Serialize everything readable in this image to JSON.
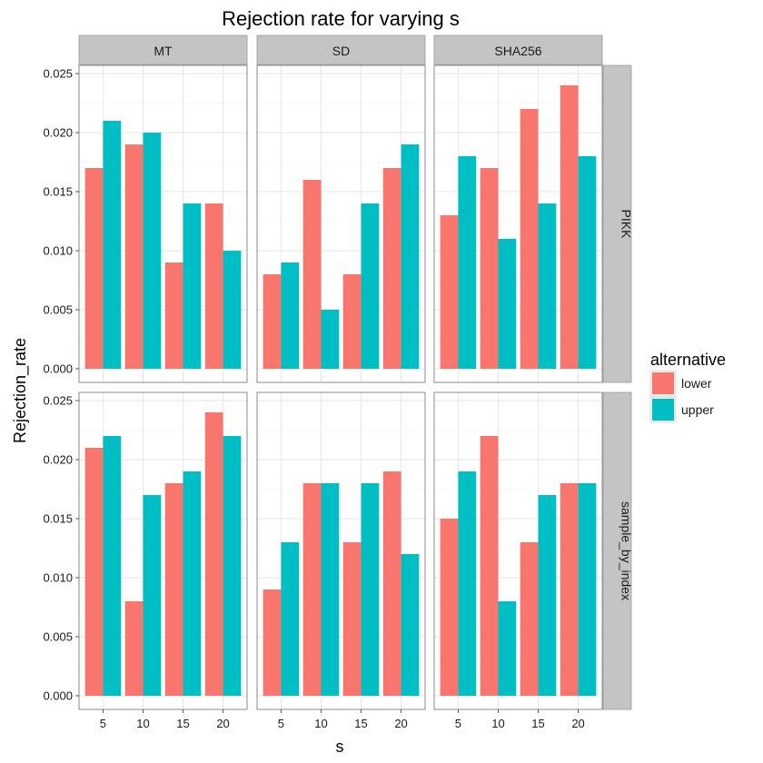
{
  "chart_data": {
    "type": "bar",
    "title": "Rejection rate for varying s",
    "xlabel": "s",
    "ylabel": "Rejection_rate",
    "categories": [
      "5",
      "10",
      "15",
      "20"
    ],
    "ylim": [
      0,
      0.025
    ],
    "yticks": [
      "0.000",
      "0.005",
      "0.010",
      "0.015",
      "0.020",
      "0.025"
    ],
    "grid": true,
    "col_facets": [
      "MT",
      "SD",
      "SHA256"
    ],
    "row_facets": [
      "PIKK",
      "sample_by_index"
    ],
    "legend": {
      "title": "alternative",
      "placement": "right",
      "entries": [
        {
          "name": "lower",
          "color": "#f8766d"
        },
        {
          "name": "upper",
          "color": "#00bfc4"
        }
      ]
    },
    "panels": [
      {
        "row": "PIKK",
        "col": "MT",
        "series": [
          {
            "name": "lower",
            "values": [
              0.017,
              0.019,
              0.009,
              0.014
            ]
          },
          {
            "name": "upper",
            "values": [
              0.021,
              0.02,
              0.014,
              0.01
            ]
          }
        ]
      },
      {
        "row": "PIKK",
        "col": "SD",
        "series": [
          {
            "name": "lower",
            "values": [
              0.008,
              0.016,
              0.008,
              0.017
            ]
          },
          {
            "name": "upper",
            "values": [
              0.009,
              0.005,
              0.014,
              0.019
            ]
          }
        ]
      },
      {
        "row": "PIKK",
        "col": "SHA256",
        "series": [
          {
            "name": "lower",
            "values": [
              0.013,
              0.017,
              0.022,
              0.024
            ]
          },
          {
            "name": "upper",
            "values": [
              0.018,
              0.011,
              0.014,
              0.018
            ]
          }
        ]
      },
      {
        "row": "sample_by_index",
        "col": "MT",
        "series": [
          {
            "name": "lower",
            "values": [
              0.021,
              0.008,
              0.018,
              0.024
            ]
          },
          {
            "name": "upper",
            "values": [
              0.022,
              0.017,
              0.019,
              0.022
            ]
          }
        ]
      },
      {
        "row": "sample_by_index",
        "col": "SD",
        "series": [
          {
            "name": "lower",
            "values": [
              0.009,
              0.018,
              0.013,
              0.019
            ]
          },
          {
            "name": "upper",
            "values": [
              0.013,
              0.018,
              0.018,
              0.012
            ]
          }
        ]
      },
      {
        "row": "sample_by_index",
        "col": "SHA256",
        "series": [
          {
            "name": "lower",
            "values": [
              0.015,
              0.022,
              0.013,
              0.018
            ]
          },
          {
            "name": "upper",
            "values": [
              0.019,
              0.008,
              0.017,
              0.018
            ]
          }
        ]
      }
    ]
  }
}
